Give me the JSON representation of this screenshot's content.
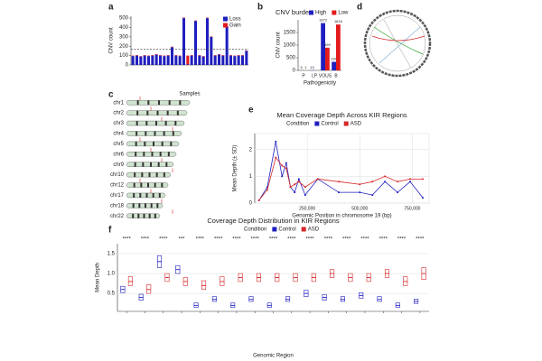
{
  "chart_data": [
    {
      "type": "bar",
      "panel": "a",
      "xlabel": "Samples",
      "ylabel": "CNV count",
      "categories": [
        null,
        null,
        null,
        null,
        null,
        null,
        null,
        null,
        null,
        null,
        null,
        null,
        null,
        null,
        null,
        null,
        null,
        null,
        null,
        null,
        null,
        null,
        null,
        null,
        null,
        null,
        null,
        null,
        null,
        null
      ],
      "series": [
        {
          "name": "Loss",
          "color": "#1f1fbf",
          "values": [
            95,
            100,
            90,
            100,
            95,
            100,
            110,
            100,
            95,
            100,
            190,
            100,
            95,
            500,
            5,
            100,
            470,
            100,
            90,
            500,
            300,
            100,
            110,
            100,
            410,
            100,
            95,
            100,
            100,
            150
          ]
        },
        {
          "name": "Gain",
          "color": "#e41a1c",
          "values": [
            5,
            5,
            5,
            5,
            5,
            5,
            5,
            5,
            5,
            5,
            5,
            5,
            5,
            5,
            95,
            5,
            5,
            5,
            5,
            5,
            5,
            5,
            5,
            5,
            5,
            5,
            5,
            5,
            5,
            5
          ]
        }
      ],
      "hline": 170,
      "ylim": [
        0,
        520
      ],
      "yticks": [
        0,
        100,
        200,
        300,
        400,
        500
      ]
    },
    {
      "type": "groupbar",
      "panel": "b",
      "title": "CNV burden",
      "xlabel": "Pathogenicity",
      "ylabel": "CNV count",
      "categories": [
        "P",
        "LP",
        "VOUS",
        "B"
      ],
      "series": [
        {
          "name": "High",
          "color": "#1f1fbf",
          "values": [
            5,
            10,
            1872,
            339
          ]
        },
        {
          "name": "Low",
          "color": "#e41a1c",
          "values": [
            1,
            null,
            899,
            1816
          ]
        }
      ],
      "ylim": [
        0,
        2000
      ],
      "yticks": [
        0,
        500,
        1000,
        1500
      ]
    },
    {
      "type": "ideogram",
      "panel": "c",
      "chromosomes": [
        "chr1",
        "chr2",
        "chr3",
        "chr4",
        "chr5",
        "chr6",
        "chr9",
        "chr10",
        "chr12",
        "chr17",
        "chr18",
        "chr22"
      ]
    },
    {
      "type": "circos",
      "panel": "d"
    },
    {
      "type": "line",
      "panel": "e",
      "title": "Mean Coverage Depth Across KIR Regions",
      "legend_title": "Condition",
      "xlabel": "Genomic Position in chromosome 19 (bp)",
      "ylabel": "Mean Depth (± SD)",
      "x": [
        20000,
        60000,
        100000,
        130000,
        150000,
        170000,
        190000,
        210000,
        240000,
        300000,
        400000,
        500000,
        560000,
        620000,
        680000,
        740000,
        800000
      ],
      "series": [
        {
          "name": "Control",
          "color": "#1f1fbf",
          "values": [
            0.1,
            0.6,
            2.3,
            1.0,
            1.5,
            0.6,
            0.4,
            0.9,
            0.3,
            0.9,
            0.4,
            0.4,
            0.3,
            0.8,
            0.4,
            0.8,
            0.2
          ]
        },
        {
          "name": "ASD",
          "color": "#d62728",
          "values": [
            0.1,
            0.5,
            1.7,
            1.4,
            1.3,
            0.6,
            0.7,
            0.8,
            0.6,
            0.9,
            0.8,
            0.7,
            0.8,
            1.0,
            0.8,
            0.9,
            0.9
          ]
        }
      ],
      "xlim": [
        0,
        830000
      ],
      "xticks": [
        {
          "value": 250000,
          "label": "250,000"
        },
        {
          "value": 500000,
          "label": "500,000"
        },
        {
          "value": 750000,
          "label": "750,000"
        }
      ],
      "ylim": [
        0,
        2.6
      ],
      "yticks": [
        0,
        1,
        2
      ]
    },
    {
      "type": "box",
      "panel": "f",
      "title": "Coverage Depth Distribution in KIR Regions",
      "legend_title": "Condition",
      "xlabel": "Genomic Region",
      "ylabel": "Mean Depth",
      "categories": [
        null,
        null,
        null,
        null,
        null,
        null,
        null,
        null,
        null,
        null,
        null,
        null,
        null,
        null,
        null,
        null,
        null
      ],
      "significance": [
        "****",
        "****",
        "****",
        "***",
        "****",
        "****",
        "****",
        "****",
        "****",
        "****",
        "****",
        "****",
        "****",
        "****",
        "****",
        "****",
        "****"
      ],
      "series": [
        {
          "name": "Control",
          "color": "#1f1fbf",
          "q1": [
            0.52,
            0.33,
            1.15,
            1.0,
            0.15,
            0.3,
            0.15,
            0.3,
            0.15,
            0.3,
            0.42,
            0.33,
            0.3,
            0.38,
            0.3,
            0.15,
            0.25
          ],
          "median": [
            0.6,
            0.4,
            1.3,
            1.1,
            0.2,
            0.35,
            0.2,
            0.35,
            0.2,
            0.35,
            0.5,
            0.4,
            0.35,
            0.45,
            0.35,
            0.2,
            0.3
          ],
          "q3": [
            0.68,
            0.48,
            1.45,
            1.2,
            0.26,
            0.42,
            0.26,
            0.42,
            0.26,
            0.42,
            0.58,
            0.47,
            0.42,
            0.52,
            0.42,
            0.26,
            0.36
          ]
        },
        {
          "name": "ASD",
          "color": "#d62728",
          "q1": [
            0.7,
            0.5,
            0.8,
            0.7,
            0.6,
            0.7,
            0.8,
            0.8,
            0.8,
            0.8,
            0.8,
            0.9,
            0.8,
            0.8,
            0.9,
            0.7,
            0.85
          ],
          "median": [
            0.8,
            0.6,
            0.9,
            0.8,
            0.7,
            0.8,
            0.9,
            0.9,
            0.9,
            0.9,
            0.9,
            1.0,
            0.9,
            0.9,
            1.0,
            0.8,
            1.0
          ],
          "q3": [
            0.92,
            0.72,
            1.0,
            0.9,
            0.82,
            0.92,
            1.0,
            1.0,
            1.0,
            1.0,
            1.0,
            1.1,
            1.0,
            1.0,
            1.1,
            0.92,
            1.15
          ]
        }
      ],
      "ylim": [
        0.05,
        1.75
      ],
      "yticks": [
        0.5,
        {
          "value": 1,
          "label": "1.0"
        },
        1.5
      ]
    }
  ]
}
